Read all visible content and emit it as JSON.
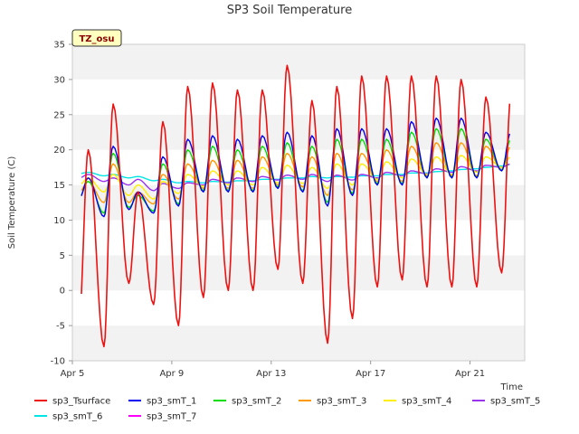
{
  "chart_data": {
    "type": "line",
    "title": "SP3 Soil Temperature",
    "xlabel": "Time",
    "ylabel": "Soil Temperature (C)",
    "badge": "TZ_osu",
    "xlim": [
      0,
      18.2
    ],
    "ylim": [
      -10,
      35
    ],
    "y_ticks": [
      -10,
      -5,
      0,
      5,
      10,
      15,
      20,
      25,
      30,
      35
    ],
    "x_ticks": [
      {
        "day": 0,
        "label": "Apr 5"
      },
      {
        "day": 4,
        "label": "Apr 9"
      },
      {
        "day": 8,
        "label": "Apr 13"
      },
      {
        "day": 12,
        "label": "Apr 17"
      },
      {
        "day": 16,
        "label": "Apr 21"
      }
    ],
    "grid": "horizontal alternating bands",
    "daily_extremes": {
      "days": [
        "Apr 5",
        "Apr 6",
        "Apr 7",
        "Apr 8",
        "Apr 9",
        "Apr 10",
        "Apr 11",
        "Apr 12",
        "Apr 13",
        "Apr 14",
        "Apr 15",
        "Apr 16",
        "Apr 17",
        "Apr 18",
        "Apr 19",
        "Apr 20",
        "Apr 21",
        "Apr 22"
      ],
      "sp3_Tsurface_min": [
        -4,
        -8,
        1,
        -2,
        -5,
        -1,
        0,
        0,
        3,
        1,
        -7.5,
        -4,
        0.5,
        1.5,
        0.5,
        0.5,
        0.5,
        2.5
      ],
      "sp3_Tsurface_max": [
        20,
        26.5,
        14,
        24,
        29,
        29.5,
        28.5,
        28.5,
        32,
        27,
        29,
        30.5,
        30.5,
        30.5,
        30.5,
        30,
        27.5,
        27.5
      ],
      "sp3_smT_1_min": [
        13,
        10.5,
        11.5,
        11,
        12,
        14,
        14,
        14,
        14.5,
        14,
        12,
        13.5,
        15,
        15,
        16,
        16,
        16,
        17
      ],
      "sp3_smT_1_max": [
        16,
        20.5,
        14,
        19,
        21.5,
        22,
        21.5,
        22,
        22.5,
        22,
        23,
        23,
        23,
        24,
        24.5,
        24.5,
        22.5,
        22.5
      ]
    },
    "series": [
      {
        "name": "sp3_Tsurface",
        "color": "#ee1111",
        "daily_min": "sp3_Tsurface_min",
        "daily_max": "sp3_Tsurface_max"
      },
      {
        "name": "sp3_smT_1",
        "color": "#0000ee",
        "daily_min": "sp3_smT_1_min",
        "daily_max": "sp3_smT_1_max"
      },
      {
        "name": "sp3_smT_2",
        "color": "#00dd00",
        "daily_min": [
          13.2,
          11,
          11.8,
          11.3,
          12.3,
          14.2,
          14.2,
          14.2,
          14.7,
          14.2,
          12.5,
          13.8,
          15.2,
          15.2,
          16.1,
          16.1,
          16.1,
          17.1
        ],
        "daily_max": [
          15.5,
          19.5,
          13.5,
          18,
          20,
          20.5,
          20,
          20.5,
          21,
          20.5,
          21.5,
          21.5,
          21.5,
          22.5,
          23,
          23,
          21.5,
          21.5
        ]
      },
      {
        "name": "sp3_smT_3",
        "color": "#ff9900",
        "daily_min": [
          14,
          12.5,
          12.5,
          12.3,
          13,
          14.5,
          14.5,
          14.5,
          15,
          14.7,
          13.5,
          14.3,
          15.5,
          15.5,
          16.3,
          16.3,
          16.3,
          17.2
        ],
        "daily_max": [
          15.5,
          18,
          14,
          16.5,
          18,
          18.5,
          18.5,
          19,
          19.5,
          19,
          19.5,
          19.5,
          20,
          20.5,
          21,
          21,
          20.5,
          20.5
        ]
      },
      {
        "name": "sp3_smT_4",
        "color": "#ffee00",
        "daily_min": [
          15,
          14,
          13.5,
          13,
          13.8,
          14.8,
          15,
          15,
          15.3,
          15.2,
          14.5,
          15,
          15.8,
          16,
          16.5,
          16.5,
          16.8,
          17.5
        ],
        "daily_max": [
          16,
          16.5,
          15,
          15.5,
          16.5,
          17,
          17,
          17.5,
          17.8,
          17.5,
          18,
          18,
          18.3,
          18.7,
          19,
          19.2,
          19,
          19
        ]
      },
      {
        "name": "sp3_smT_5",
        "color": "#9933ee",
        "daily_min": [
          16,
          15.5,
          15,
          14.2,
          14.5,
          15,
          15.3,
          15.5,
          15.7,
          15.8,
          15.5,
          15.7,
          16,
          16.3,
          16.6,
          16.8,
          17,
          17.5
        ],
        "daily_max": [
          16.5,
          16,
          15.8,
          15.2,
          15.3,
          15.8,
          16,
          16.2,
          16.4,
          16.5,
          16.4,
          16.5,
          16.8,
          17,
          17.3,
          17.6,
          17.8,
          18
        ]
      },
      {
        "name": "sp3_smT_6",
        "color": "#00e5e5",
        "daily_min": [
          16.6,
          16.3,
          16,
          15.6,
          15.3,
          15.3,
          15.4,
          15.6,
          15.8,
          16,
          16,
          16.1,
          16.3,
          16.5,
          16.7,
          17,
          17.3,
          17.7
        ],
        "daily_max": [
          16.8,
          16.5,
          16.2,
          15.8,
          15.5,
          15.5,
          15.6,
          15.8,
          16,
          16.2,
          16.2,
          16.3,
          16.5,
          16.7,
          16.9,
          17.2,
          17.5,
          17.9
        ]
      },
      {
        "name": "sp3_smT_7",
        "color": "#ff00ff",
        "daily_min": [
          17.1,
          17,
          16.8,
          16.6,
          16.5,
          16.4,
          16.5,
          16.5,
          16.6,
          16.7,
          16.8,
          16.8,
          16.9,
          17,
          17.1,
          17.2,
          17.4,
          17.7
        ],
        "daily_max": [
          17.2,
          17.1,
          16.9,
          16.7,
          16.6,
          16.5,
          16.6,
          16.6,
          16.7,
          16.8,
          16.9,
          16.9,
          17,
          17.1,
          17.2,
          17.3,
          17.5,
          17.8
        ]
      }
    ]
  }
}
